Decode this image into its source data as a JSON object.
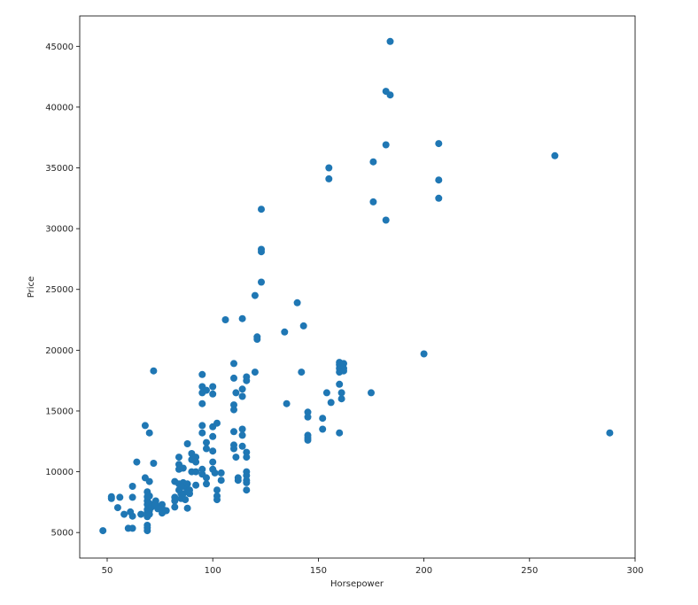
{
  "colors": {
    "point": "#1f77b4",
    "axis": "#000000",
    "text": "#262626",
    "background": "#ffffff"
  },
  "chart_data": {
    "type": "scatter",
    "title": "",
    "xlabel": "Horsepower",
    "ylabel": "Price",
    "xlim": [
      37,
      300
    ],
    "ylim": [
      2900,
      47500
    ],
    "grid": false,
    "x_ticks": [
      50,
      100,
      150,
      200,
      250,
      300
    ],
    "y_ticks": [
      5000,
      10000,
      15000,
      20000,
      25000,
      30000,
      35000,
      40000,
      45000
    ],
    "x_tick_labels": [
      "50",
      "100",
      "150",
      "200",
      "250",
      "300"
    ],
    "y_tick_labels": [
      "5000",
      "10000",
      "15000",
      "20000",
      "25000",
      "30000",
      "35000",
      "40000",
      "45000"
    ],
    "points": [
      [
        48,
        5150
      ],
      [
        52,
        7950
      ],
      [
        52,
        7800
      ],
      [
        55,
        7050
      ],
      [
        56,
        7900
      ],
      [
        58,
        6500
      ],
      [
        60,
        5350
      ],
      [
        61,
        6700
      ],
      [
        62,
        5350
      ],
      [
        62,
        6350
      ],
      [
        62,
        7900
      ],
      [
        62,
        8800
      ],
      [
        64,
        10800
      ],
      [
        66,
        6500
      ],
      [
        68,
        13800
      ],
      [
        68,
        9500
      ],
      [
        69,
        5150
      ],
      [
        69,
        5400
      ],
      [
        69,
        5600
      ],
      [
        69,
        6300
      ],
      [
        69,
        6650
      ],
      [
        69,
        6900
      ],
      [
        69,
        7300
      ],
      [
        69,
        7600
      ],
      [
        69,
        7950
      ],
      [
        69,
        8350
      ],
      [
        70,
        13200
      ],
      [
        70,
        9200
      ],
      [
        70,
        8000
      ],
      [
        70,
        7400
      ],
      [
        70,
        6800
      ],
      [
        70,
        6500
      ],
      [
        71,
        7100
      ],
      [
        72,
        18300
      ],
      [
        72,
        10700
      ],
      [
        73,
        7600
      ],
      [
        73,
        7300
      ],
      [
        74,
        6950
      ],
      [
        76,
        6600
      ],
      [
        76,
        7300
      ],
      [
        76,
        7000
      ],
      [
        78,
        6800
      ],
      [
        82,
        9200
      ],
      [
        82,
        7900
      ],
      [
        82,
        7600
      ],
      [
        82,
        7100
      ],
      [
        84,
        11200
      ],
      [
        84,
        10600
      ],
      [
        84,
        10200
      ],
      [
        84,
        9000
      ],
      [
        84,
        8500
      ],
      [
        85,
        8200
      ],
      [
        85,
        7800
      ],
      [
        86,
        10300
      ],
      [
        86,
        9100
      ],
      [
        86,
        8800
      ],
      [
        86,
        8200
      ],
      [
        87,
        7700
      ],
      [
        88,
        9000
      ],
      [
        88,
        8600
      ],
      [
        88,
        8400
      ],
      [
        88,
        12300
      ],
      [
        88,
        7000
      ],
      [
        89,
        8200
      ],
      [
        89,
        8500
      ],
      [
        90,
        11500
      ],
      [
        90,
        11000
      ],
      [
        90,
        10000
      ],
      [
        92,
        11200
      ],
      [
        92,
        10800
      ],
      [
        92,
        10000
      ],
      [
        92,
        8900
      ],
      [
        95,
        18000
      ],
      [
        95,
        17000
      ],
      [
        95,
        16500
      ],
      [
        95,
        15600
      ],
      [
        95,
        13800
      ],
      [
        95,
        13200
      ],
      [
        95,
        10200
      ],
      [
        95,
        9800
      ],
      [
        97,
        12400
      ],
      [
        97,
        11900
      ],
      [
        97,
        9500
      ],
      [
        97,
        9000
      ],
      [
        97,
        16700
      ],
      [
        100,
        17000
      ],
      [
        100,
        16400
      ],
      [
        100,
        13700
      ],
      [
        100,
        12900
      ],
      [
        100,
        11700
      ],
      [
        100,
        10800
      ],
      [
        100,
        10200
      ],
      [
        101,
        9900
      ],
      [
        102,
        14000
      ],
      [
        102,
        8500
      ],
      [
        102,
        8000
      ],
      [
        102,
        7700
      ],
      [
        104,
        9900
      ],
      [
        104,
        9300
      ],
      [
        106,
        22500
      ],
      [
        110,
        18900
      ],
      [
        110,
        17700
      ],
      [
        110,
        15500
      ],
      [
        110,
        15100
      ],
      [
        110,
        13300
      ],
      [
        110,
        12200
      ],
      [
        110,
        11900
      ],
      [
        111,
        11200
      ],
      [
        111,
        16500
      ],
      [
        112,
        9300
      ],
      [
        112,
        9500
      ],
      [
        114,
        22600
      ],
      [
        114,
        16800
      ],
      [
        114,
        16200
      ],
      [
        114,
        13500
      ],
      [
        114,
        13000
      ],
      [
        114,
        12100
      ],
      [
        116,
        11600
      ],
      [
        116,
        11200
      ],
      [
        116,
        17500
      ],
      [
        116,
        17800
      ],
      [
        116,
        10000
      ],
      [
        116,
        9700
      ],
      [
        116,
        9300
      ],
      [
        116,
        9100
      ],
      [
        116,
        8500
      ],
      [
        120,
        24500
      ],
      [
        120,
        18200
      ],
      [
        121,
        21100
      ],
      [
        121,
        20900
      ],
      [
        123,
        31600
      ],
      [
        123,
        28300
      ],
      [
        123,
        28100
      ],
      [
        123,
        25600
      ],
      [
        134,
        21500
      ],
      [
        135,
        15600
      ],
      [
        140,
        23900
      ],
      [
        142,
        18200
      ],
      [
        143,
        22000
      ],
      [
        145,
        14900
      ],
      [
        145,
        14500
      ],
      [
        145,
        13000
      ],
      [
        145,
        12800
      ],
      [
        145,
        12600
      ],
      [
        152,
        14400
      ],
      [
        152,
        13500
      ],
      [
        154,
        16500
      ],
      [
        155,
        35000
      ],
      [
        155,
        34100
      ],
      [
        156,
        15700
      ],
      [
        160,
        19000
      ],
      [
        160,
        18800
      ],
      [
        160,
        18500
      ],
      [
        160,
        18200
      ],
      [
        160,
        17200
      ],
      [
        160,
        13200
      ],
      [
        161,
        16500
      ],
      [
        161,
        16000
      ],
      [
        162,
        18900
      ],
      [
        162,
        18500
      ],
      [
        162,
        18300
      ],
      [
        175,
        16500
      ],
      [
        176,
        35500
      ],
      [
        176,
        32200
      ],
      [
        182,
        30700
      ],
      [
        182,
        36900
      ],
      [
        182,
        41300
      ],
      [
        184,
        41000
      ],
      [
        184,
        45400
      ],
      [
        200,
        19700
      ],
      [
        207,
        37000
      ],
      [
        207,
        34000
      ],
      [
        207,
        32500
      ],
      [
        262,
        36000
      ],
      [
        288,
        13200
      ]
    ]
  }
}
